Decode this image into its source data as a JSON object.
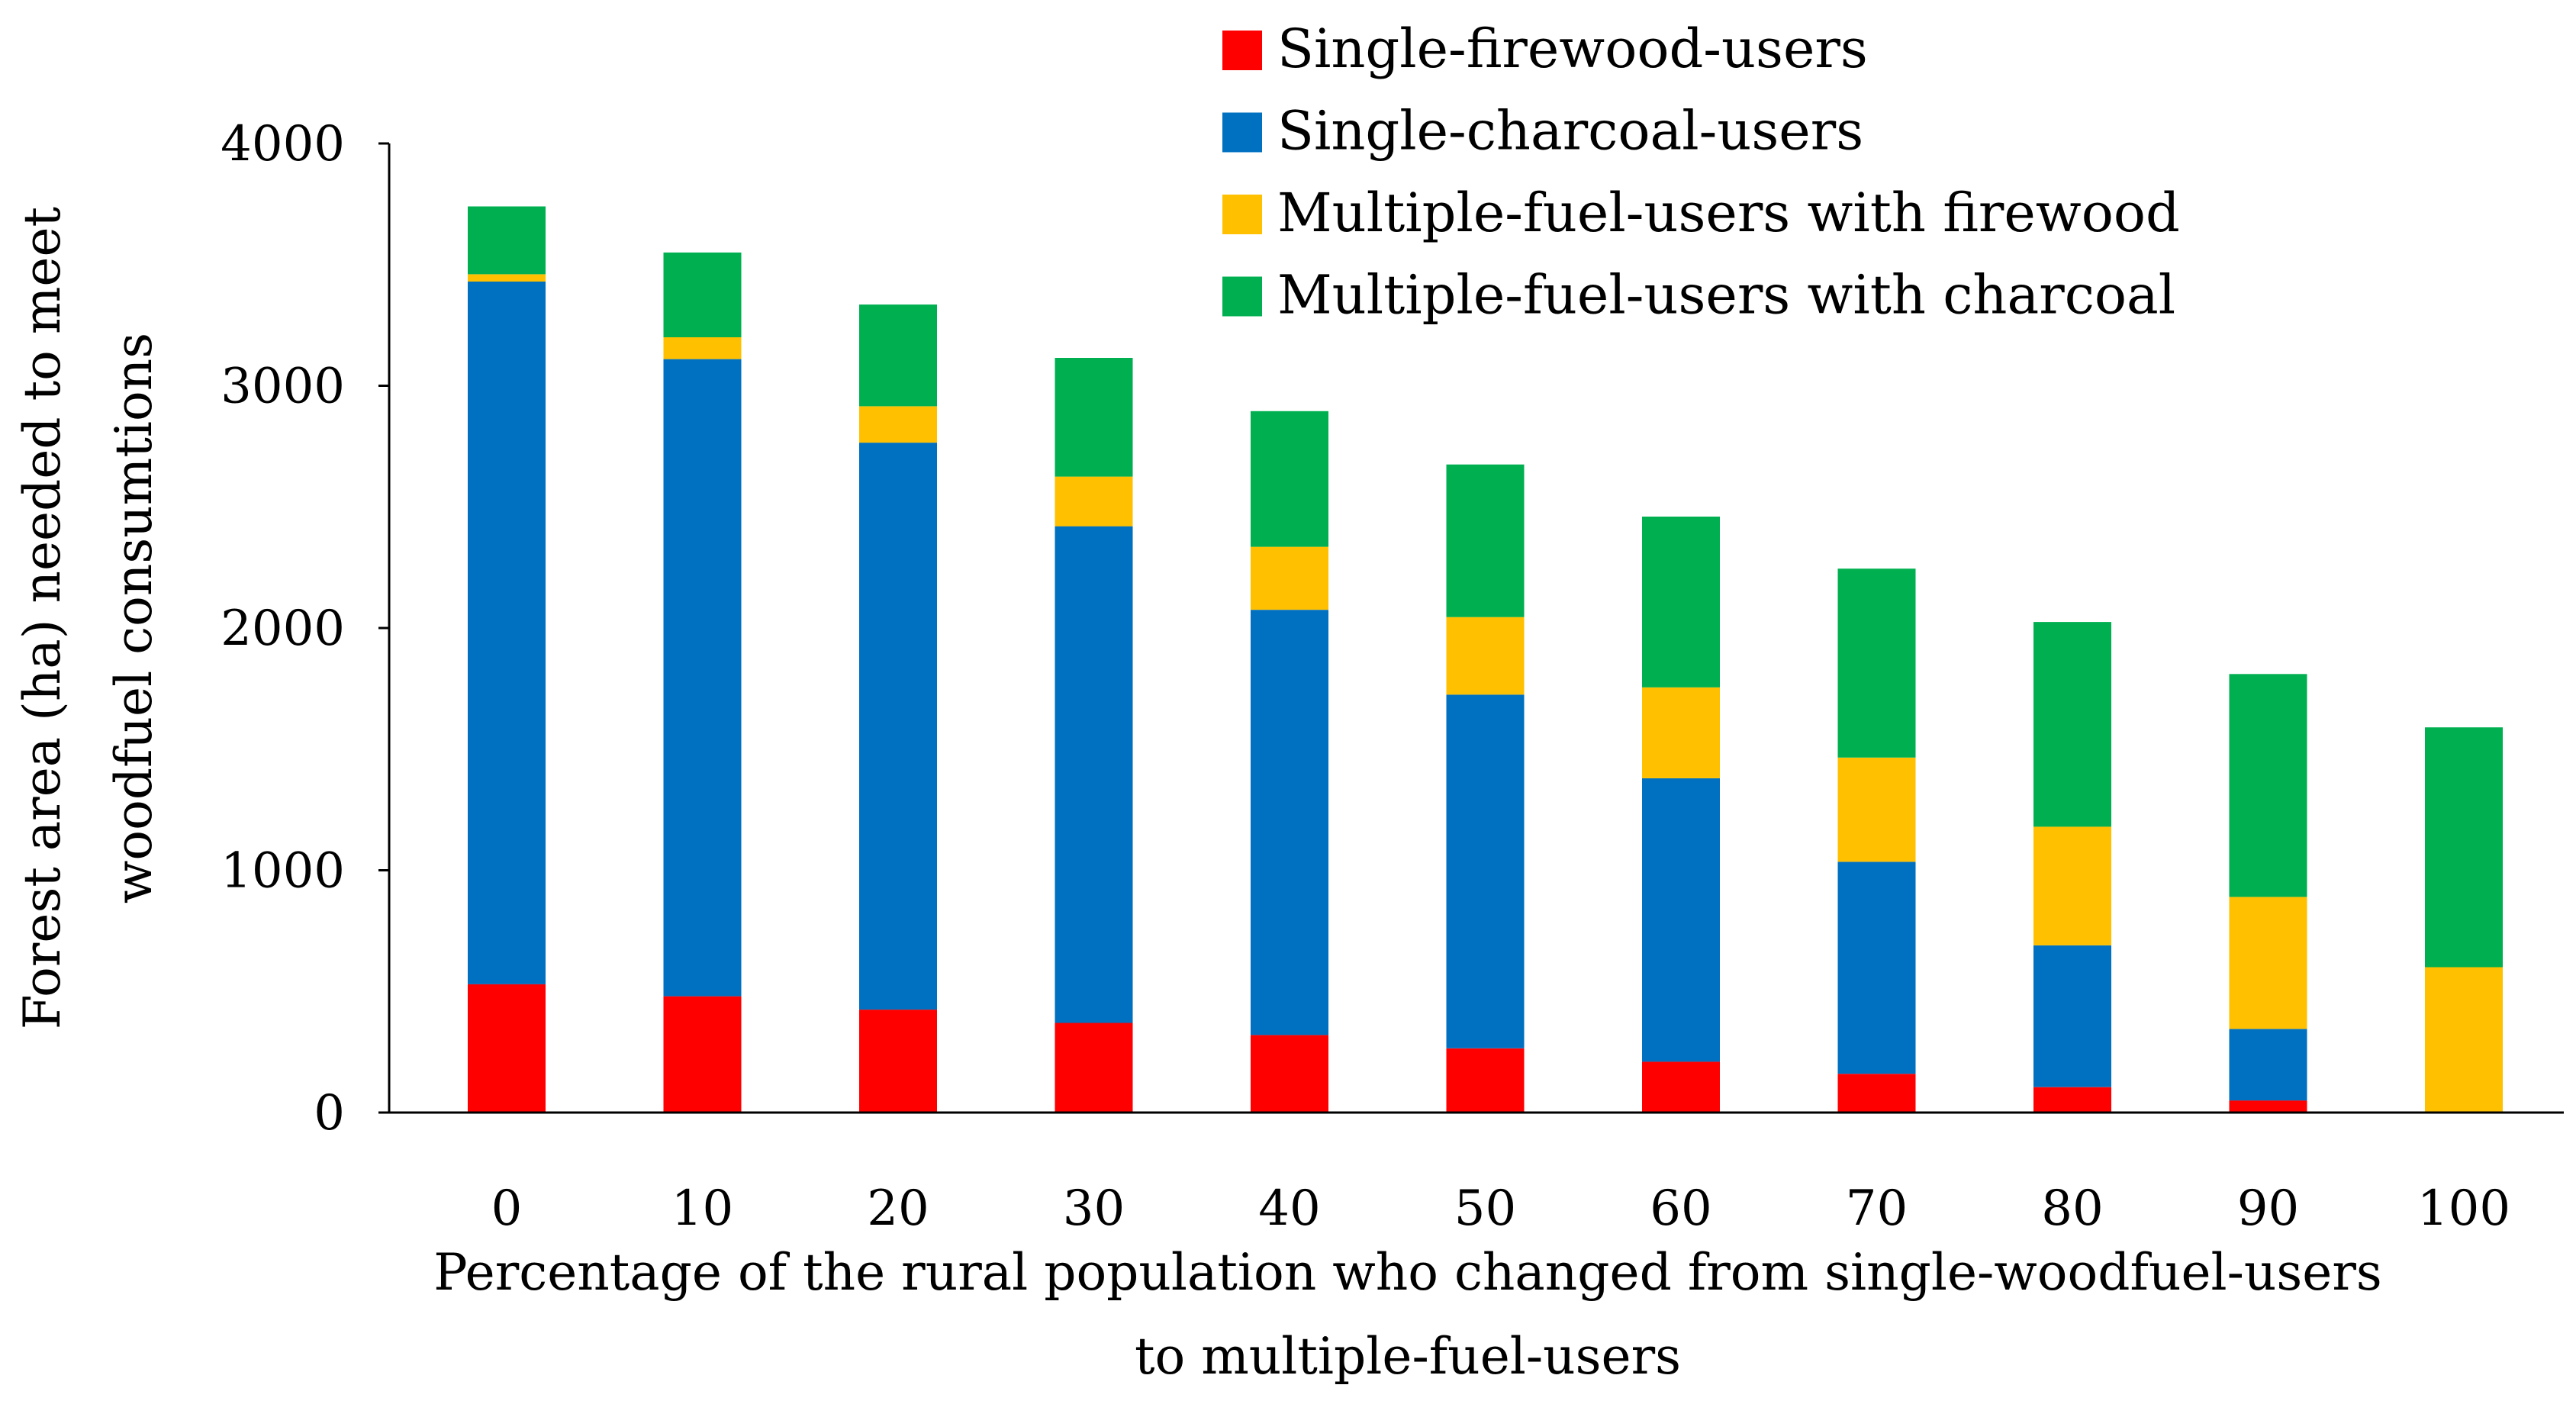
{
  "chart_data": {
    "type": "bar",
    "stacked": true,
    "title": "",
    "categories": [
      "0",
      "10",
      "20",
      "30",
      "40",
      "50",
      "60",
      "70",
      "80",
      "90",
      "100"
    ],
    "series": [
      {
        "name": "Single-firewood-users",
        "color": "#ff0000",
        "values": [
          530,
          480,
          425,
          370,
          320,
          265,
          210,
          160,
          105,
          50,
          0
        ]
      },
      {
        "name": "Single-charcoal-users",
        "color": "#0070c0",
        "values": [
          2900,
          2630,
          2340,
          2050,
          1755,
          1460,
          1170,
          875,
          585,
          295,
          0
        ]
      },
      {
        "name": "Multiple-fuel-users with firewood",
        "color": "#ffc000",
        "values": [
          30,
          90,
          150,
          205,
          260,
          320,
          375,
          430,
          490,
          545,
          600
        ]
      },
      {
        "name": "Multiple-fuel-users with charcoal",
        "color": "#00b050",
        "values": [
          280,
          350,
          420,
          490,
          560,
          630,
          705,
          780,
          845,
          920,
          990
        ]
      }
    ],
    "ylim": [
      0,
      4000
    ],
    "yticks": [
      "0",
      "1000",
      "2000",
      "3000",
      "4000"
    ],
    "ylabel_lines": [
      "Forest area (ha) needed to meet",
      "woodfuel consumtions"
    ],
    "xlabel_lines": [
      "Percentage of the rural population who changed from single-woodfuel-users",
      "to multiple-fuel-users"
    ],
    "legend_position": "top-right"
  }
}
